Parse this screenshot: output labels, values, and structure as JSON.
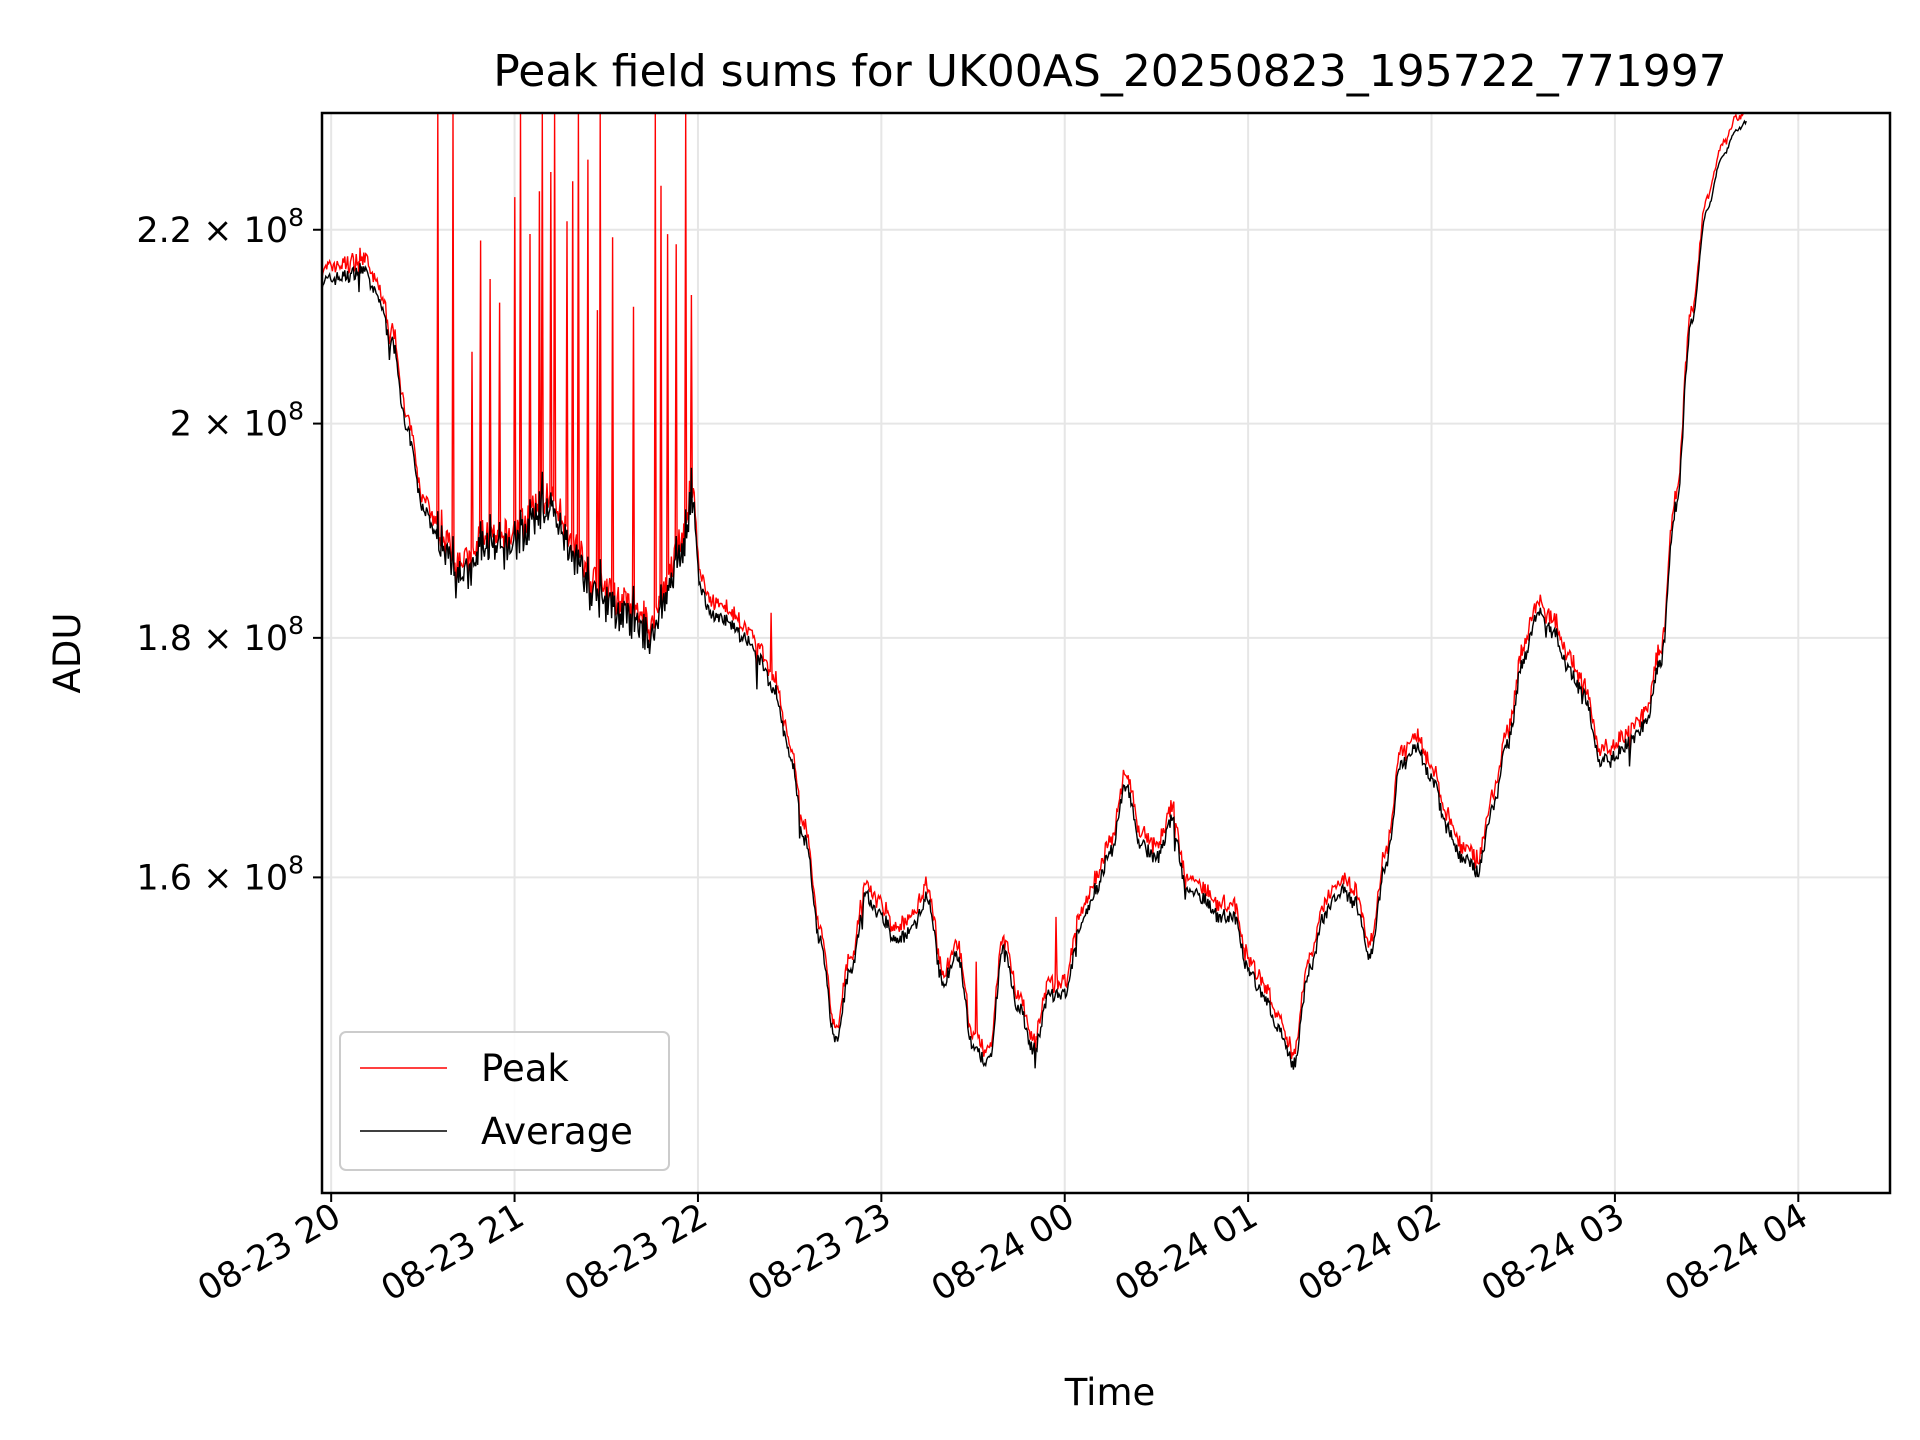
{
  "chart_data": {
    "type": "line",
    "title": "Peak field sums for UK00AS_20250823_195722_771997",
    "xlabel": "Time",
    "ylabel": "ADU",
    "y_scale": "log",
    "grid": true,
    "legend_position": "lower-left",
    "xlim": [
      "2025-08-23 19:57",
      "2025-08-24 04:30"
    ],
    "ylim": [
      137000000,
      233000000
    ],
    "x_ticks": [
      "08-23 20",
      "08-23 21",
      "08-23 22",
      "08-23 23",
      "08-24 00",
      "08-24 01",
      "08-24 02",
      "08-24 03",
      "08-24 04"
    ],
    "y_ticks": [
      {
        "value": 160000000,
        "mantissa": "1.6",
        "exponent": "8"
      },
      {
        "value": 180000000,
        "mantissa": "1.8",
        "exponent": "8"
      },
      {
        "value": 200000000,
        "mantissa": "2",
        "exponent": "8"
      },
      {
        "value": 220000000,
        "mantissa": "2.2",
        "exponent": "8"
      }
    ],
    "average_points": [
      [
        "2025-08-23 19:57",
        214500000
      ],
      [
        "2025-08-23 20:05",
        215000000
      ],
      [
        "2025-08-23 20:10",
        215800000
      ],
      [
        "2025-08-23 20:15",
        213000000
      ],
      [
        "2025-08-23 20:20",
        208000000
      ],
      [
        "2025-08-23 20:25",
        199000000
      ],
      [
        "2025-08-23 20:30",
        192000000
      ],
      [
        "2025-08-23 20:35",
        189000000
      ],
      [
        "2025-08-23 20:40",
        187000000
      ],
      [
        "2025-08-23 20:45",
        185500000
      ],
      [
        "2025-08-23 20:50",
        188500000
      ],
      [
        "2025-08-23 20:55",
        187500000
      ],
      [
        "2025-08-23 21:00",
        188500000
      ],
      [
        "2025-08-23 21:05",
        190000000
      ],
      [
        "2025-08-23 21:10",
        192000000
      ],
      [
        "2025-08-23 21:15",
        190000000
      ],
      [
        "2025-08-23 21:20",
        187000000
      ],
      [
        "2025-08-23 21:25",
        184000000
      ],
      [
        "2025-08-23 21:30",
        183000000
      ],
      [
        "2025-08-23 21:35",
        182000000
      ],
      [
        "2025-08-23 21:40",
        181000000
      ],
      [
        "2025-08-23 21:45",
        180000000
      ],
      [
        "2025-08-23 21:50",
        184000000
      ],
      [
        "2025-08-23 21:55",
        188000000
      ],
      [
        "2025-08-23 21:58",
        192500000
      ],
      [
        "2025-08-23 22:01",
        184000000
      ],
      [
        "2025-08-23 22:05",
        182000000
      ],
      [
        "2025-08-23 22:10",
        181500000
      ],
      [
        "2025-08-23 22:15",
        180000000
      ],
      [
        "2025-08-23 22:20",
        178000000
      ],
      [
        "2025-08-23 22:25",
        175500000
      ],
      [
        "2025-08-23 22:30",
        170000000
      ],
      [
        "2025-08-23 22:35",
        163000000
      ],
      [
        "2025-08-23 22:40",
        155000000
      ],
      [
        "2025-08-23 22:45",
        147500000
      ],
      [
        "2025-08-23 22:50",
        153000000
      ],
      [
        "2025-08-23 22:55",
        158500000
      ],
      [
        "2025-08-23 23:00",
        157000000
      ],
      [
        "2025-08-23 23:05",
        155000000
      ],
      [
        "2025-08-23 23:10",
        156000000
      ],
      [
        "2025-08-23 23:15",
        158500000
      ],
      [
        "2025-08-23 23:20",
        152000000
      ],
      [
        "2025-08-23 23:25",
        154000000
      ],
      [
        "2025-08-23 23:30",
        147000000
      ],
      [
        "2025-08-23 23:35",
        146000000
      ],
      [
        "2025-08-23 23:40",
        154500000
      ],
      [
        "2025-08-23 23:45",
        150000000
      ],
      [
        "2025-08-23 23:50",
        147000000
      ],
      [
        "2025-08-23 23:55",
        151000000
      ],
      [
        "2025-08-24 00:00",
        151000000
      ],
      [
        "2025-08-24 00:05",
        156000000
      ],
      [
        "2025-08-24 00:10",
        159000000
      ],
      [
        "2025-08-24 00:15",
        162000000
      ],
      [
        "2025-08-24 00:20",
        167500000
      ],
      [
        "2025-08-24 00:25",
        162500000
      ],
      [
        "2025-08-24 00:30",
        161500000
      ],
      [
        "2025-08-24 00:35",
        164500000
      ],
      [
        "2025-08-24 00:40",
        159000000
      ],
      [
        "2025-08-24 00:45",
        158500000
      ],
      [
        "2025-08-24 00:50",
        157000000
      ],
      [
        "2025-08-24 00:55",
        157000000
      ],
      [
        "2025-08-24 01:00",
        153000000
      ],
      [
        "2025-08-24 01:05",
        151000000
      ],
      [
        "2025-08-24 01:10",
        148500000
      ],
      [
        "2025-08-24 01:15",
        146000000
      ],
      [
        "2025-08-24 01:20",
        153000000
      ],
      [
        "2025-08-24 01:25",
        157000000
      ],
      [
        "2025-08-24 01:30",
        159000000
      ],
      [
        "2025-08-24 01:35",
        158000000
      ],
      [
        "2025-08-24 01:40",
        154000000
      ],
      [
        "2025-08-24 01:45",
        161000000
      ],
      [
        "2025-08-24 01:50",
        169000000
      ],
      [
        "2025-08-24 01:55",
        170500000
      ],
      [
        "2025-08-24 02:00",
        168000000
      ],
      [
        "2025-08-24 02:05",
        164000000
      ],
      [
        "2025-08-24 02:10",
        161500000
      ],
      [
        "2025-08-24 02:15",
        160500000
      ],
      [
        "2025-08-24 02:20",
        165500000
      ],
      [
        "2025-08-24 02:25",
        171000000
      ],
      [
        "2025-08-24 02:30",
        178000000
      ],
      [
        "2025-08-24 02:35",
        182500000
      ],
      [
        "2025-08-24 02:40",
        180500000
      ],
      [
        "2025-08-24 02:45",
        177000000
      ],
      [
        "2025-08-24 02:50",
        175000000
      ],
      [
        "2025-08-24 02:55",
        169500000
      ],
      [
        "2025-08-24 03:00",
        170000000
      ],
      [
        "2025-08-24 03:05",
        171000000
      ],
      [
        "2025-08-24 03:10",
        172500000
      ],
      [
        "2025-08-24 03:15",
        178000000
      ],
      [
        "2025-08-24 03:20",
        192000000
      ],
      [
        "2025-08-24 03:25",
        210000000
      ],
      [
        "2025-08-24 03:30",
        222000000
      ],
      [
        "2025-08-24 03:35",
        228000000
      ],
      [
        "2025-08-24 03:40",
        231000000
      ],
      [
        "2025-08-24 03:43",
        232000000
      ]
    ]
  }
}
